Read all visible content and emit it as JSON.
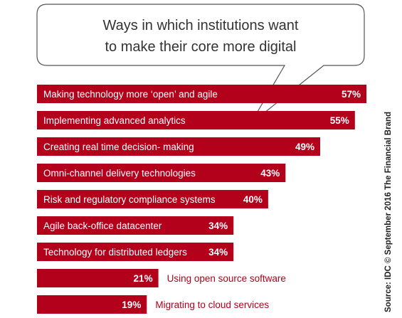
{
  "chart_data": {
    "type": "bar",
    "orientation": "horizontal",
    "title": "Ways in which institutions want to make their core more digital",
    "title_lines": [
      "Ways in which institutions want",
      "to make their core more digital"
    ],
    "categories": [
      "Making technology more ‘open’ and agile",
      "Implementing advanced analytics",
      "Creating real time decision- making",
      "Omni-channel delivery technologies",
      "Risk and regulatory compliance systems",
      "Agile back-office datacenter",
      "Technology for distributed ledgers",
      "Using open source software",
      "Migrating to cloud services"
    ],
    "values": [
      57,
      55,
      49,
      43,
      40,
      34,
      34,
      21,
      19
    ],
    "value_labels": [
      "57%",
      "55%",
      "49%",
      "43%",
      "40%",
      "34%",
      "34%",
      "21%",
      "19%"
    ],
    "unit": "%",
    "xlim": [
      0,
      57
    ],
    "grid": false,
    "legend": "none",
    "colors": {
      "bar": "#b3001b",
      "bar_text": "#ffffff",
      "outside_label": "#b3001b"
    },
    "source": "Source: IDC © September 2016 The Financial Brand"
  }
}
